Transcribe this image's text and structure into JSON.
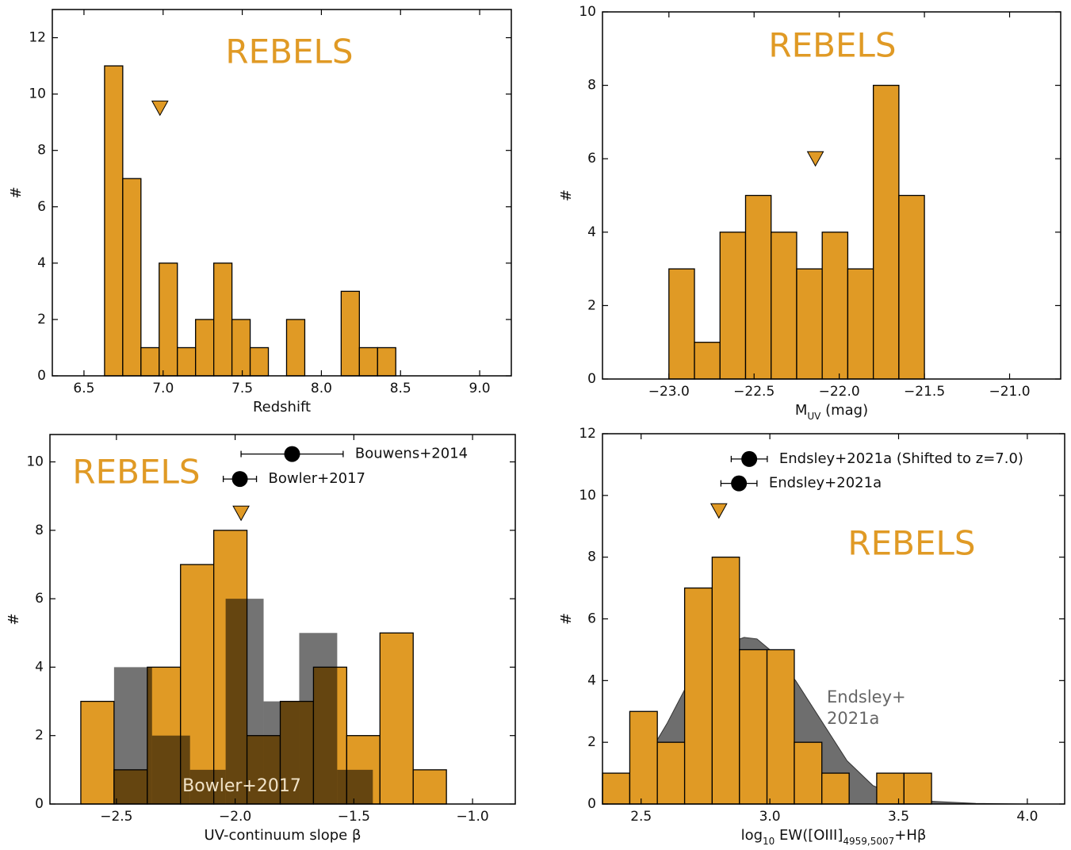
{
  "chart_data": [
    {
      "type": "histogram",
      "xlabel": "Redshift",
      "ylabel": "#",
      "xlim": [
        6.3,
        9.2
      ],
      "ylim": [
        0,
        13
      ],
      "xticks": [
        6.5,
        {
          "value": 7,
          "label": "7.0"
        },
        7.5,
        {
          "value": 8,
          "label": "8.0"
        },
        8.5,
        {
          "value": 9,
          "label": "9.0"
        }
      ],
      "yticks": [
        0,
        2,
        4,
        6,
        8,
        10,
        12
      ],
      "series": [
        {
          "name": "REBELS",
          "color": "#e09a25",
          "bins": [
            6.63,
            6.745,
            6.86,
            6.975,
            7.09,
            7.205,
            7.32,
            7.435,
            7.55,
            7.665,
            7.78,
            7.895,
            8.01,
            8.125,
            8.24,
            8.355,
            8.47
          ],
          "values": [
            11,
            7,
            1,
            4,
            1,
            2,
            4,
            2,
            1,
            0,
            2,
            0,
            0,
            3,
            1,
            1
          ]
        }
      ],
      "markers": [
        {
          "x": 6.98,
          "y": 9.5,
          "color": "#e09a25",
          "shape": "triangle-down"
        }
      ]
    },
    {
      "type": "histogram",
      "xlabel": [
        {
          "text": "M"
        },
        {
          "text": "UV",
          "sub": true
        },
        {
          "text": " (mag)"
        }
      ],
      "ylabel": "#",
      "xlim": [
        -23.39,
        -20.7
      ],
      "ylim": [
        0,
        10
      ],
      "xticks": [
        {
          "value": -23,
          "label": "−23.0"
        },
        {
          "value": -22.5,
          "label": "−22.5"
        },
        {
          "value": -22,
          "label": "−22.0"
        },
        {
          "value": -21.5,
          "label": "−21.5"
        },
        {
          "value": -21,
          "label": "−21.0"
        }
      ],
      "yticks": [
        0,
        2,
        4,
        6,
        8,
        10
      ],
      "series": [
        {
          "name": "REBELS",
          "color": "#e09a25",
          "bins": [
            -23.0,
            -22.85,
            -22.7,
            -22.55,
            -22.4,
            -22.25,
            -22.1,
            -21.95,
            -21.8,
            -21.65,
            -21.5
          ],
          "values": [
            3,
            1,
            4,
            5,
            4,
            3,
            4,
            3,
            8,
            5
          ]
        }
      ],
      "markers": [
        {
          "x": -22.14,
          "y": 6.0,
          "color": "#e09a25",
          "shape": "triangle-down"
        }
      ]
    },
    {
      "type": "histogram",
      "xlabel": "UV-continuum slope β",
      "ylabel": "#",
      "xlim": [
        -2.78,
        -0.82
      ],
      "ylim": [
        0,
        10.8
      ],
      "xticks": [
        {
          "value": -2.5,
          "label": "−2.5"
        },
        {
          "value": -2,
          "label": "−2.0"
        },
        {
          "value": -1.5,
          "label": "−1.5"
        },
        {
          "value": -1,
          "label": "−1.0"
        }
      ],
      "yticks": [
        0,
        2,
        4,
        6,
        8,
        10
      ],
      "series": [
        {
          "name": "REBELS",
          "color": "#e09a25",
          "bins": [
            -2.65,
            -2.51,
            -2.37,
            -2.23,
            -2.09,
            -1.95,
            -1.81,
            -1.67,
            -1.53,
            -1.39,
            -1.25,
            -1.11
          ],
          "values": [
            3,
            1,
            4,
            7,
            8,
            2,
            3,
            4,
            2,
            5,
            1
          ]
        },
        {
          "name": "Bowler+2017",
          "color": "#000000",
          "opacity": 0.55,
          "bins": [
            -2.51,
            -2.35,
            -2.19,
            -2.04,
            -1.88,
            -1.73,
            -1.57,
            -1.42
          ],
          "values": [
            4,
            2,
            1,
            6,
            3,
            5,
            1
          ]
        }
      ],
      "markers": [
        {
          "x": -1.975,
          "y": 8.5,
          "color": "#e09a25",
          "shape": "triangle-down"
        }
      ],
      "points": [
        {
          "name": "Bouwens+2014",
          "x": -1.76,
          "xerr": 0.215,
          "y": 10.23,
          "color": "#000000"
        },
        {
          "name": "Bowler+2017",
          "x": -1.98,
          "xerr": 0.07,
          "y": 9.5,
          "color": "#000000"
        }
      ]
    },
    {
      "type": "histogram",
      "xlabel": [
        {
          "text": "log"
        },
        {
          "text": "10",
          "sub": true
        },
        {
          "text": " EW([OIII]"
        },
        {
          "text": "4959,5007",
          "sub": true
        },
        {
          "text": "+Hβ"
        }
      ],
      "ylabel": "#",
      "xlim": [
        2.35,
        4.145
      ],
      "ylim": [
        0,
        12
      ],
      "xticks": [
        2.5,
        {
          "value": 3,
          "label": "3.0"
        },
        3.5,
        {
          "value": 4,
          "label": "4.0"
        }
      ],
      "yticks": [
        0,
        2,
        4,
        6,
        8,
        10,
        12
      ],
      "curve": {
        "name": [
          "Endsley+",
          "2021a"
        ],
        "color": "#666666",
        "x": [
          2.37,
          2.45,
          2.5,
          2.6,
          2.7,
          2.8,
          2.9,
          2.95,
          3.0,
          3.1,
          3.2,
          3.3,
          3.4,
          3.5,
          3.6,
          3.8,
          4.0
        ],
        "y": [
          0,
          0.7,
          1.2,
          2.6,
          4.2,
          5.1,
          5.4,
          5.35,
          5.0,
          4.0,
          2.7,
          1.4,
          0.6,
          0.25,
          0.1,
          0.02,
          0
        ]
      },
      "series": [
        {
          "name": "REBELS",
          "color": "#e09a25",
          "bins": [
            2.35,
            2.456,
            2.563,
            2.669,
            2.776,
            2.882,
            2.989,
            3.095,
            3.202,
            3.308,
            3.415,
            3.521,
            3.628
          ],
          "values": [
            1,
            3,
            2,
            7,
            8,
            5,
            5,
            2,
            1,
            0,
            1,
            1
          ]
        }
      ],
      "markers": [
        {
          "x": 2.802,
          "y": 9.5,
          "color": "#e09a25",
          "shape": "triangle-down"
        }
      ],
      "points": [
        {
          "name": "Endsley+2021a (Shifted to z=7.0)",
          "x": 2.92,
          "xerr": 0.07,
          "y": 11.18,
          "color": "#000000"
        },
        {
          "name": "Endsley+2021a",
          "x": 2.88,
          "xerr": 0.07,
          "y": 10.39,
          "color": "#000000"
        }
      ]
    }
  ]
}
